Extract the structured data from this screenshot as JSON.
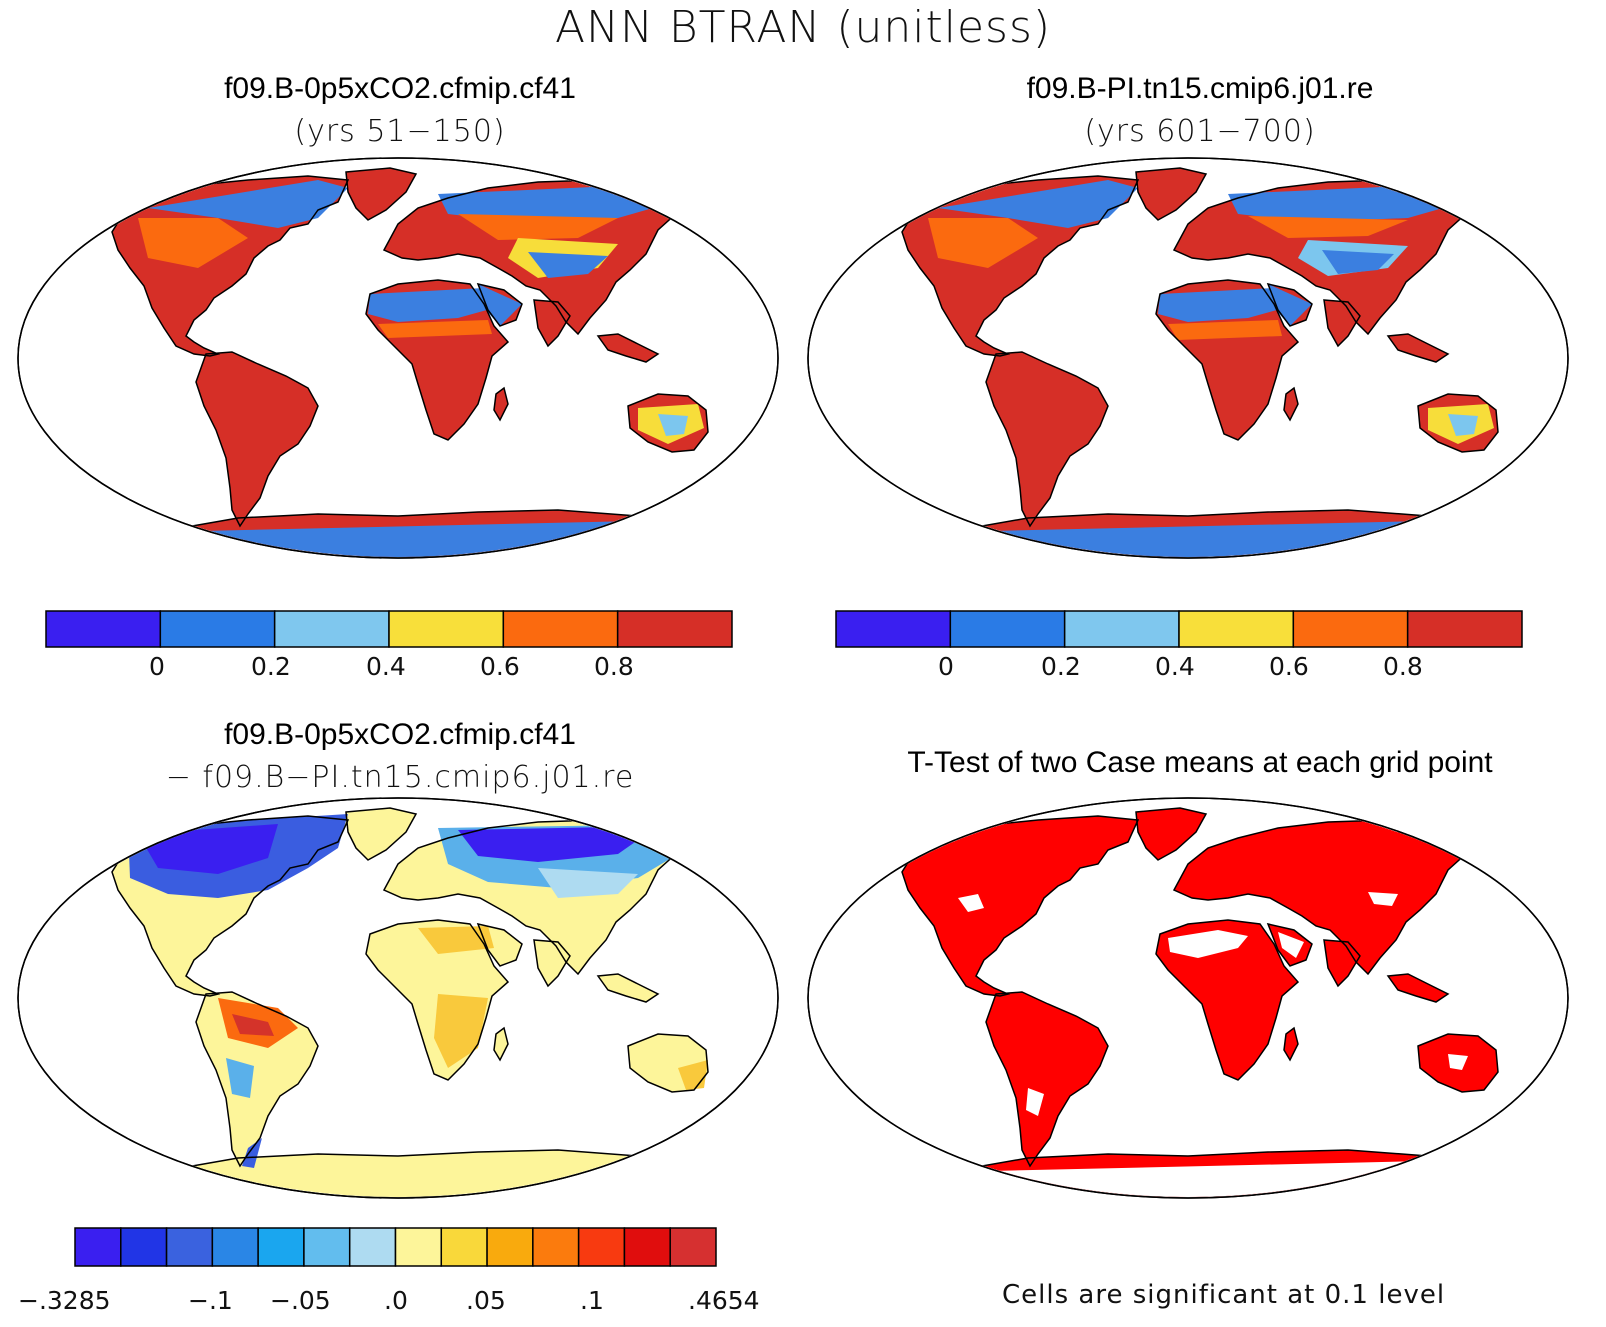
{
  "figure": {
    "title": "ANN  BTRAN (unitless)"
  },
  "panels": [
    {
      "id": "case1",
      "title": "f09.B-0p5xCO2.cfmip.cf41",
      "subtitle": "(yrs 51−150)",
      "map": {
        "land_palette": [
          "#d62f27",
          "#fb6a0f",
          "#f7dd3a",
          "#7cc6ee",
          "#3b7fe0"
        ]
      }
    },
    {
      "id": "case2",
      "title": "f09.B-PI.tn15.cmip6.j01.re",
      "subtitle": "(yrs 601−700)",
      "map": {
        "land_palette": [
          "#d62f27",
          "#fb6a0f",
          "#f7dd3a",
          "#7cc6ee",
          "#3b7fe0"
        ]
      }
    },
    {
      "id": "difference",
      "title": "f09.B-0p5xCO2.cfmip.cf41",
      "subtitle": "− f09.B−PI.tn15.cmip6.j01.re",
      "map": {
        "land_palette": [
          "#fdf59a",
          "#f9c93c",
          "#5ab0ea",
          "#3a5de0",
          "#d4332a"
        ]
      }
    },
    {
      "id": "ttest",
      "title": "T-Test of two Case means at each grid point",
      "note": "Cells are significant at 0.1 level",
      "map": {
        "land_palette": [
          "#ff0000",
          "#ffffff"
        ]
      }
    }
  ],
  "colorbars": {
    "abs": {
      "colors": [
        "#3a1ff0",
        "#2a7be6",
        "#7fc7ee",
        "#f8df3a",
        "#fb6a0f",
        "#d62f27"
      ],
      "labels": [
        "0",
        "0.2",
        "0.4",
        "0.6",
        "0.8"
      ]
    },
    "diff": {
      "colors": [
        "#3a1ff0",
        "#2135e6",
        "#3a62df",
        "#2a86e6",
        "#1aa6ef",
        "#62bdee",
        "#aedbf1",
        "#fdf59a",
        "#f9d83a",
        "#f9aa0d",
        "#fb7b0d",
        "#f83a10",
        "#e00d0d",
        "#d63030"
      ],
      "labels": [
        "−.3285",
        "−.1",
        "−.05",
        ".0",
        ".05",
        ".1",
        ".4654"
      ]
    }
  }
}
